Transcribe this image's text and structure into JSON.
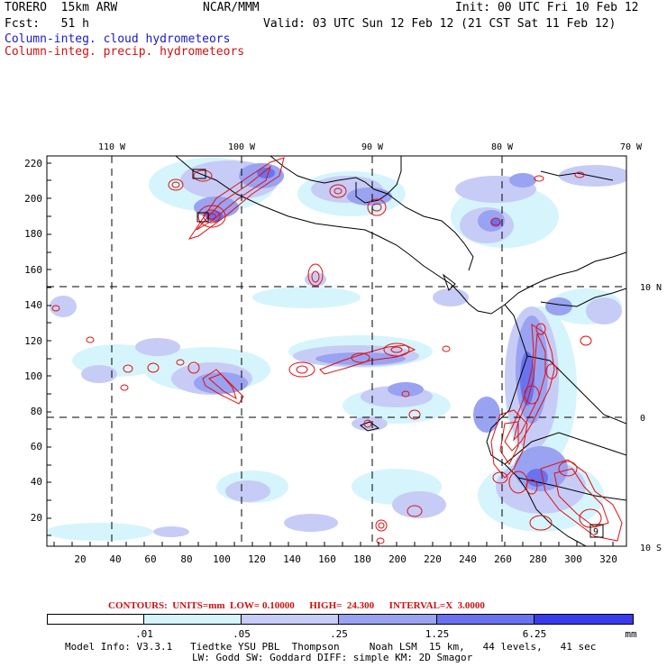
{
  "header": {
    "model": "TORERO  15km ARW",
    "org": "NCAR/MMM",
    "init": "Init: 00 UTC Fri 10 Feb 12",
    "fcst": "Fcst:   51 h",
    "valid": "Valid: 03 UTC Sun 12 Feb 12 (21 CST Sat 11 Feb 12)",
    "field1": "Column-integ. cloud hydrometeors",
    "field2": "Column-integ. precip. hydrometeors"
  },
  "colors": {
    "cloud_field": "#1a1acc",
    "precip_field": "#d01010",
    "shade_1": "#d6f4fb",
    "shade_2": "#c6ccf6",
    "shade_3": "#9aa2f2",
    "shade_4": "#6a72ef",
    "shade_5": "#3a3aee",
    "coast": "#000000",
    "contour": "#e01010"
  },
  "map": {
    "lon_labels": [
      "110 W",
      "100 W",
      "90 W",
      "80 W",
      "70 W"
    ],
    "lat_labels": [
      "10 N",
      "0",
      "10 S"
    ],
    "y_ticks": [
      "220",
      "200",
      "180",
      "160",
      "140",
      "120",
      "100",
      "80",
      "60",
      "40",
      "20"
    ],
    "x_ticks": [
      "20",
      "40",
      "60",
      "80",
      "100",
      "120",
      "140",
      "160",
      "180",
      "200",
      "220",
      "240",
      "260",
      "280",
      "300",
      "320"
    ],
    "box_label": "9"
  },
  "contour_info": {
    "units_label": "CONTOURS:  UNITS=mm",
    "low": "LOW= 0.10000",
    "high": "HIGH=  24.300",
    "interval": "INTERVAL=X  3.0000"
  },
  "colorbar": {
    "labels": [
      ".01",
      ".05",
      ".25",
      "1.25",
      "6.25"
    ],
    "unit": "mm"
  },
  "footer": {
    "line1": "Model Info: V3.3.1   Tiedtke YSU PBL  Thompson     Noah LSM  15 km,   44 levels,   41 sec",
    "line2": "LW: Godd SW: Goddard DIFF: simple KM: 2D Smagor"
  }
}
